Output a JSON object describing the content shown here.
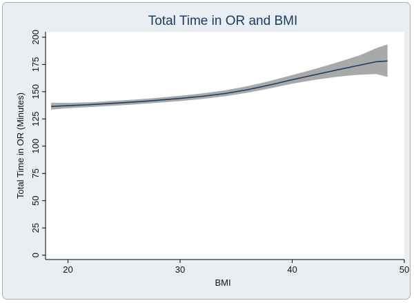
{
  "chart_data": {
    "type": "line",
    "title": "Total Time in OR and BMI",
    "xlabel": "BMI",
    "ylabel": "Total Time in OR (Minutes)",
    "xlim": [
      18,
      50
    ],
    "ylim": [
      -4,
      205
    ],
    "x_ticks": [
      20,
      30,
      40,
      50
    ],
    "y_ticks": [
      0,
      25,
      50,
      75,
      100,
      125,
      150,
      175,
      200
    ],
    "grid": false,
    "legend": "none",
    "colors": {
      "background": "#e9eef2",
      "plot_area": "#ffffff",
      "line": "#1f3a5f",
      "confidence_band": "#a9a9a9",
      "title": "#1c3a6b"
    },
    "series": [
      {
        "x": [
          18.5,
          20,
          22,
          24,
          26,
          28,
          30,
          32,
          34,
          36,
          38,
          40,
          42,
          44,
          46,
          47.5,
          48.5
        ],
        "y": [
          136.5,
          137.2,
          138.1,
          139.3,
          140.6,
          142.1,
          143.8,
          145.8,
          148.3,
          151.8,
          156.2,
          161.0,
          165.5,
          170.0,
          174.3,
          177.5,
          178.2
        ],
        "lower": [
          133.5,
          134.8,
          135.9,
          137.1,
          138.4,
          139.8,
          141.4,
          143.3,
          145.8,
          149.0,
          153.0,
          157.3,
          160.8,
          163.7,
          165.6,
          166.2,
          163.5
        ],
        "upper": [
          139.8,
          139.7,
          140.3,
          141.6,
          142.8,
          144.4,
          146.3,
          148.5,
          151.2,
          155.0,
          159.8,
          165.3,
          170.8,
          176.8,
          183.3,
          190.0,
          193.5
        ]
      }
    ]
  }
}
